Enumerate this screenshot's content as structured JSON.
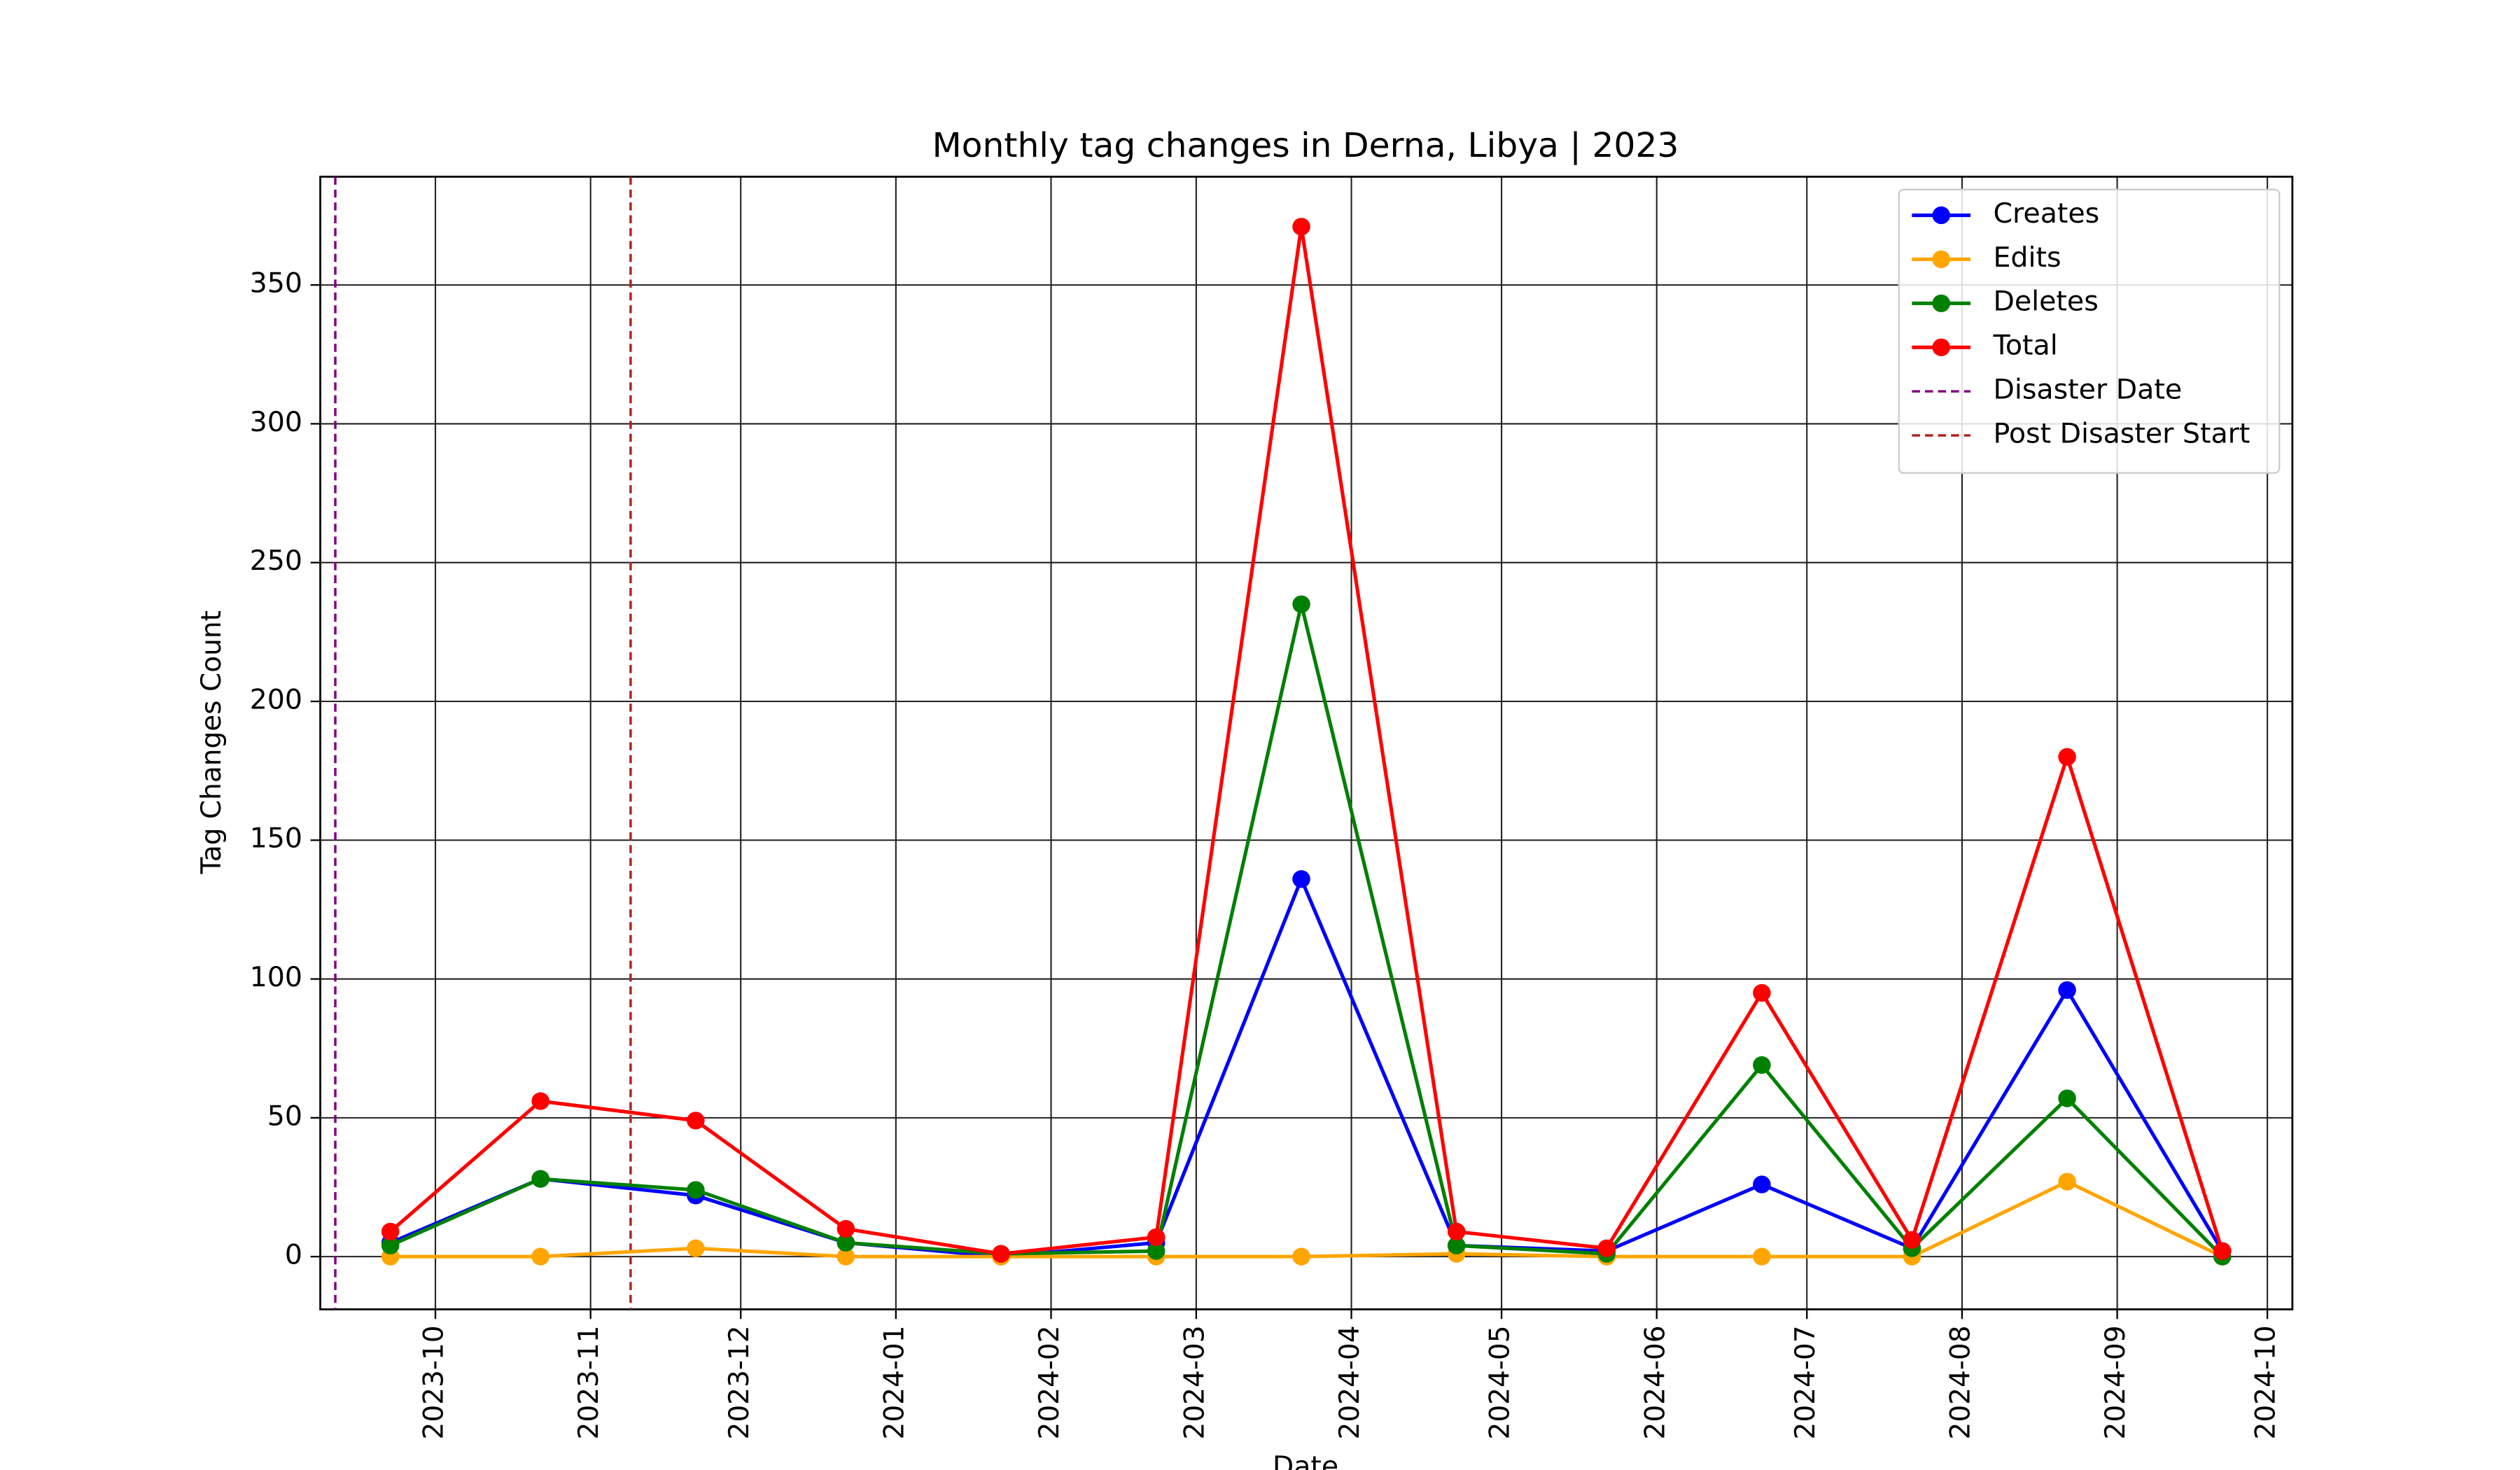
{
  "chart_data": {
    "type": "line",
    "title": "Monthly tag changes in Derna, Libya | 2023",
    "x_label": "Date",
    "y_label": "Tag Changes Count",
    "x": [
      "2023-09",
      "2023-10",
      "2023-11",
      "2023-12",
      "2024-01",
      "2024-02",
      "2024-03",
      "2024-04",
      "2024-05",
      "2024-06",
      "2024-07",
      "2024-08",
      "2024-09"
    ],
    "series": [
      {
        "name": "Creates",
        "color": "blue",
        "values": [
          5,
          28,
          22,
          5,
          0,
          5,
          136,
          4,
          2,
          26,
          3,
          96,
          2
        ]
      },
      {
        "name": "Edits",
        "color": "orange",
        "values": [
          0,
          0,
          3,
          0,
          0,
          0,
          0,
          1,
          0,
          0,
          0,
          27,
          0
        ]
      },
      {
        "name": "Deletes",
        "color": "green",
        "values": [
          4,
          28,
          24,
          5,
          1,
          2,
          235,
          4,
          1,
          69,
          3,
          57,
          0
        ]
      },
      {
        "name": "Total",
        "color": "red",
        "values": [
          9,
          56,
          49,
          10,
          1,
          7,
          371,
          9,
          3,
          95,
          6,
          180,
          2
        ]
      }
    ],
    "vlines": [
      {
        "name": "Disaster Date",
        "x": "2023-09",
        "color": "purple"
      },
      {
        "name": "Post Disaster Start",
        "x": "2023-11",
        "color": "#b22222"
      }
    ],
    "xlim": [
      "2023-09",
      "2024-10"
    ],
    "xticks": [
      "2023-10",
      "2023-11",
      "2023-12",
      "2024-01",
      "2024-02",
      "2024-03",
      "2024-04",
      "2024-05",
      "2024-06",
      "2024-07",
      "2024-08",
      "2024-09",
      "2024-10"
    ],
    "ylim": [
      -19,
      389
    ],
    "yticks": [
      0,
      50,
      100,
      150,
      200,
      250,
      300,
      350
    ],
    "grid": true,
    "legend": "upper right"
  }
}
